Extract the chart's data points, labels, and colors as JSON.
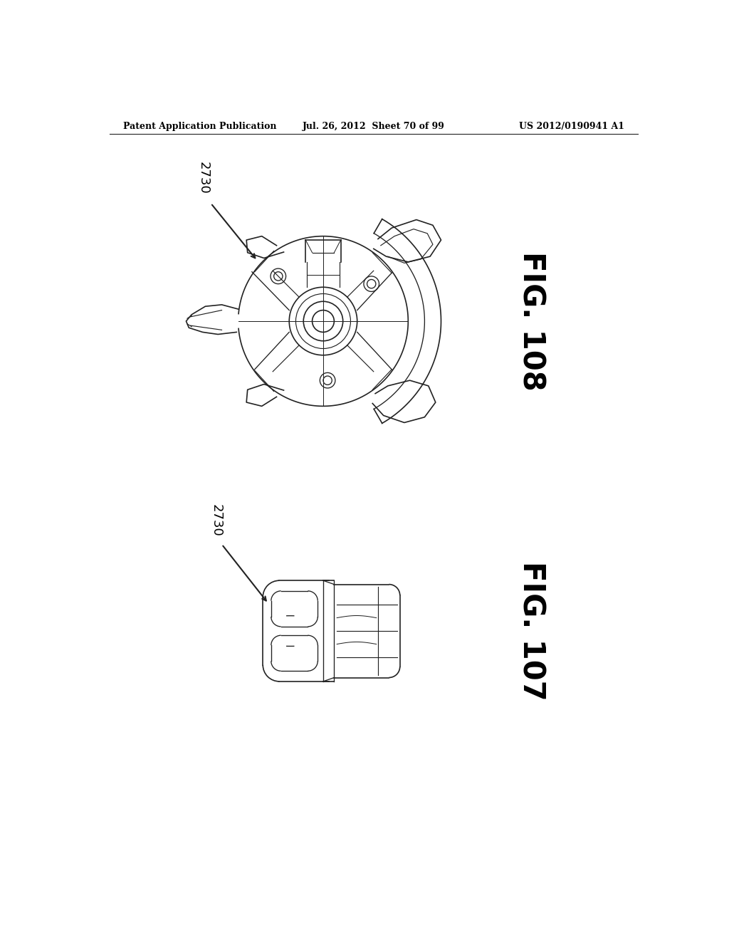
{
  "bg_color": "#ffffff",
  "header_left": "Patent Application Publication",
  "header_mid": "Jul. 26, 2012  Sheet 70 of 99",
  "header_right": "US 2012/0190941 A1",
  "fig108_label": "FIG. 108",
  "fig107_label": "FIG. 107",
  "ref_label": "2730",
  "line_color": "#222222",
  "text_color": "#000000"
}
